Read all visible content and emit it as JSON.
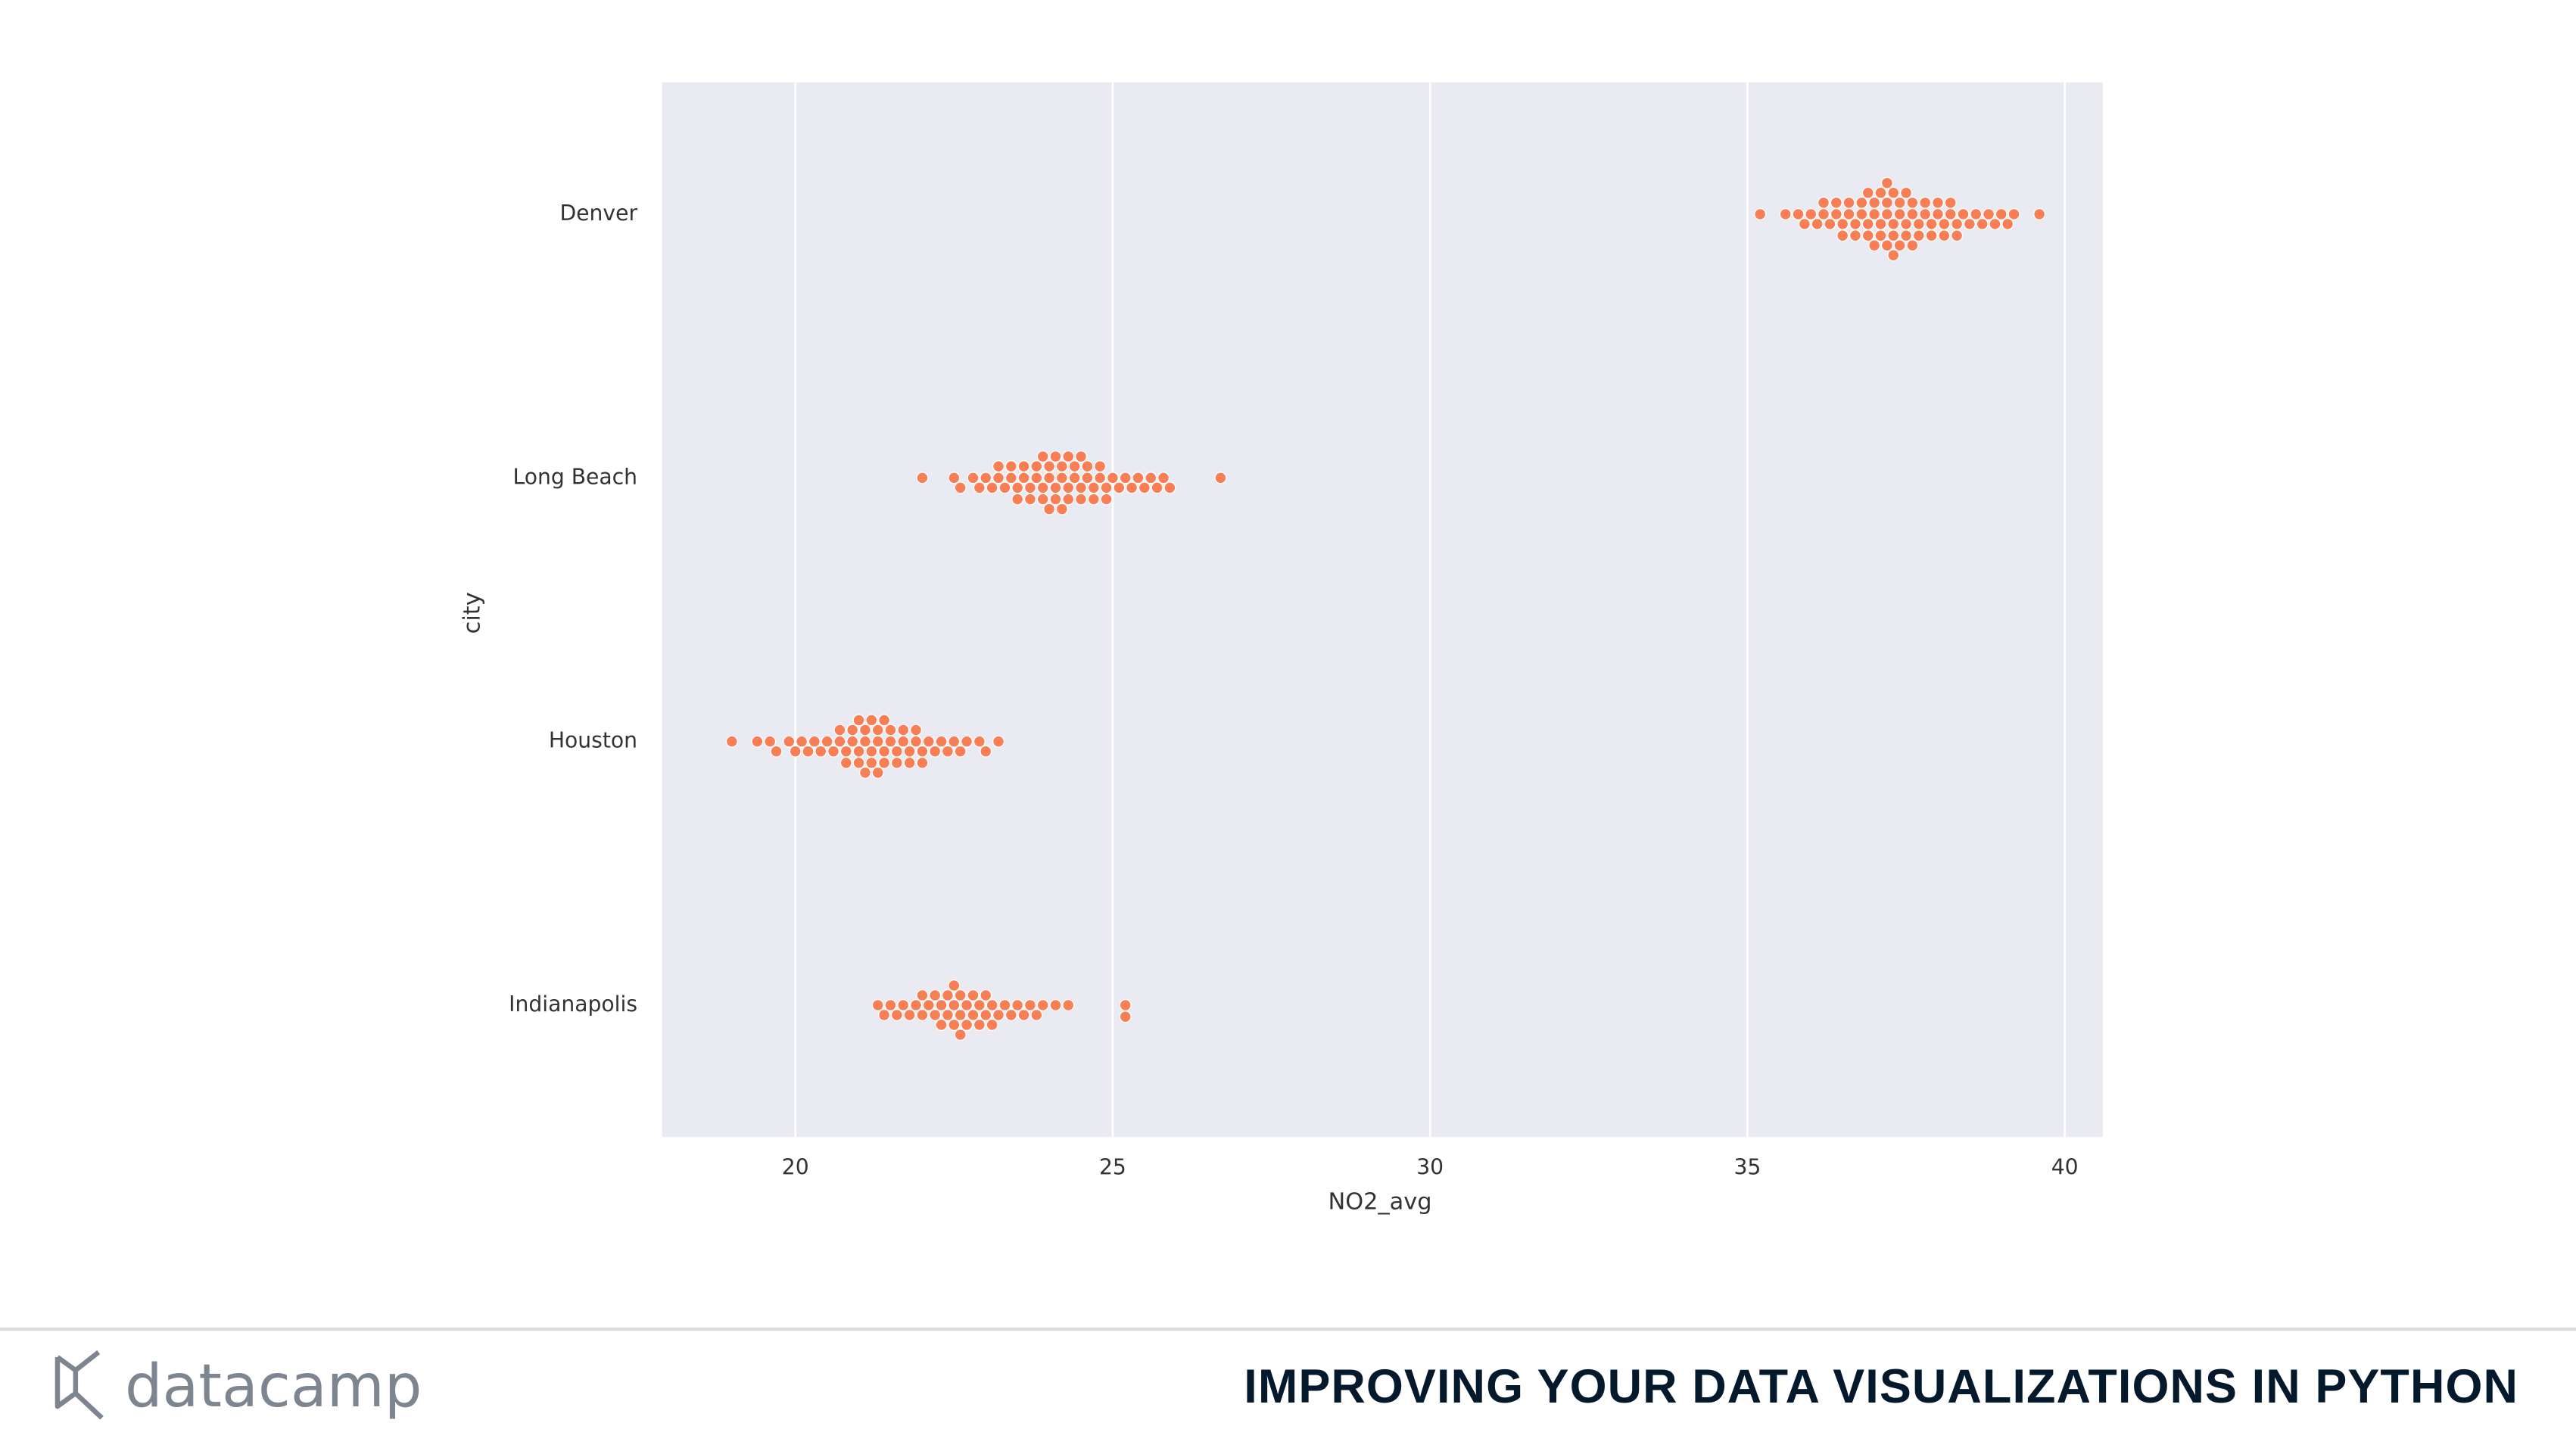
{
  "chart_data": {
    "type": "swarm",
    "categories": [
      "Denver",
      "Long Beach",
      "Houston",
      "Indianapolis"
    ],
    "values": [
      [
        35.2,
        35.6,
        35.8,
        35.9,
        36.0,
        36.1,
        36.2,
        36.2,
        36.3,
        36.4,
        36.4,
        36.5,
        36.5,
        36.6,
        36.6,
        36.7,
        36.7,
        36.8,
        36.8,
        36.9,
        36.9,
        36.9,
        37.0,
        37.0,
        37.0,
        37.1,
        37.1,
        37.1,
        37.2,
        37.2,
        37.2,
        37.2,
        37.3,
        37.3,
        37.3,
        37.3,
        37.4,
        37.4,
        37.4,
        37.5,
        37.5,
        37.5,
        37.6,
        37.6,
        37.6,
        37.7,
        37.7,
        37.8,
        37.8,
        37.9,
        37.9,
        38.0,
        38.0,
        38.1,
        38.1,
        38.2,
        38.2,
        38.3,
        38.3,
        38.4,
        38.5,
        38.6,
        38.7,
        38.8,
        38.9,
        39.0,
        39.1,
        39.2,
        39.6
      ],
      [
        22.0,
        22.5,
        22.6,
        22.8,
        22.9,
        23.0,
        23.1,
        23.2,
        23.2,
        23.3,
        23.4,
        23.4,
        23.5,
        23.5,
        23.6,
        23.6,
        23.7,
        23.7,
        23.8,
        23.8,
        23.9,
        23.9,
        23.9,
        24.0,
        24.0,
        24.0,
        24.1,
        24.1,
        24.1,
        24.2,
        24.2,
        24.2,
        24.3,
        24.3,
        24.3,
        24.4,
        24.4,
        24.5,
        24.5,
        24.5,
        24.6,
        24.6,
        24.7,
        24.7,
        24.8,
        24.8,
        24.9,
        24.9,
        25.0,
        25.1,
        25.2,
        25.3,
        25.4,
        25.5,
        25.6,
        25.7,
        25.8,
        25.9,
        26.7
      ],
      [
        19.0,
        19.4,
        19.6,
        19.7,
        19.9,
        20.0,
        20.1,
        20.2,
        20.3,
        20.4,
        20.5,
        20.6,
        20.7,
        20.7,
        20.8,
        20.8,
        20.9,
        20.9,
        21.0,
        21.0,
        21.0,
        21.1,
        21.1,
        21.1,
        21.2,
        21.2,
        21.2,
        21.3,
        21.3,
        21.3,
        21.4,
        21.4,
        21.4,
        21.5,
        21.5,
        21.6,
        21.6,
        21.7,
        21.7,
        21.8,
        21.8,
        21.9,
        21.9,
        22.0,
        22.0,
        22.1,
        22.2,
        22.3,
        22.4,
        22.5,
        22.6,
        22.7,
        22.9,
        23.0,
        23.2
      ],
      [
        21.3,
        21.4,
        21.5,
        21.6,
        21.7,
        21.8,
        21.9,
        22.0,
        22.0,
        22.1,
        22.2,
        22.2,
        22.3,
        22.3,
        22.4,
        22.4,
        22.5,
        22.5,
        22.5,
        22.6,
        22.6,
        22.6,
        22.7,
        22.7,
        22.8,
        22.8,
        22.9,
        22.9,
        23.0,
        23.0,
        23.1,
        23.1,
        23.2,
        23.3,
        23.4,
        23.5,
        23.6,
        23.7,
        23.8,
        23.9,
        24.1,
        24.3,
        25.2,
        25.2
      ]
    ],
    "color": "#f87f55",
    "xlabel": "NO2_avg",
    "ylabel": "city",
    "xlim": [
      17.9,
      40.6
    ],
    "xticks": [
      20,
      25,
      30,
      35,
      40
    ],
    "grid": true
  },
  "footer": {
    "logo": "datacamp",
    "title": "IMPROVING YOUR DATA VISUALIZATIONS IN PYTHON"
  }
}
